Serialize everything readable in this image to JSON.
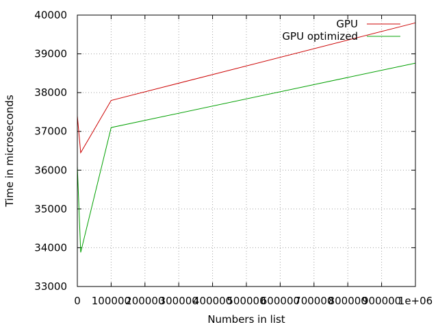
{
  "chart_data": {
    "type": "line",
    "title": "",
    "xlabel": "Numbers in list",
    "ylabel": "Time in microseconds",
    "xlim": [
      0,
      1000000
    ],
    "ylim": [
      33000,
      40000
    ],
    "xticks": [
      0,
      100000,
      200000,
      300000,
      400000,
      500000,
      600000,
      700000,
      800000,
      900000,
      1000000
    ],
    "xtick_labels": [
      "0",
      "100000",
      "200000",
      "300000",
      "400000",
      "500000",
      "600000",
      "700000",
      "800000",
      "900000",
      "1e+06"
    ],
    "yticks": [
      33000,
      34000,
      35000,
      36000,
      37000,
      38000,
      39000,
      40000
    ],
    "ytick_labels": [
      "33000",
      "34000",
      "35000",
      "36000",
      "37000",
      "38000",
      "39000",
      "40000"
    ],
    "grid": true,
    "legend_position": "top-right",
    "series": [
      {
        "name": "GPU",
        "color": "#cc0000",
        "x": [
          100,
          10000,
          100000,
          1000000
        ],
        "y": [
          37400,
          36450,
          37800,
          39800
        ]
      },
      {
        "name": "GPU optimized",
        "color": "#00a000",
        "x": [
          100,
          10000,
          100000,
          1000000
        ],
        "y": [
          36100,
          33880,
          37100,
          38760
        ]
      }
    ]
  }
}
